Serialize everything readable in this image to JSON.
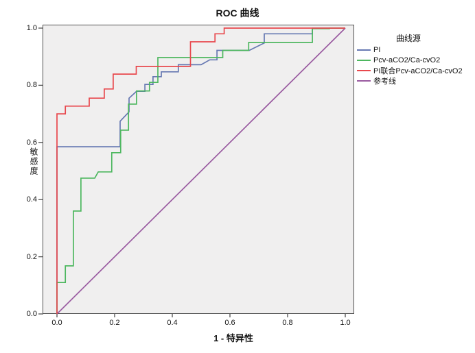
{
  "title": "ROC 曲线",
  "x_axis": {
    "label": "1 - 特异性",
    "ticks": [
      "0.0",
      "0.2",
      "0.4",
      "0.6",
      "0.8",
      "1.0"
    ]
  },
  "y_axis": {
    "label": "敏感度",
    "ticks": [
      "0.0",
      "0.2",
      "0.4",
      "0.6",
      "0.8",
      "1.0"
    ]
  },
  "legend": {
    "title": "曲线源",
    "items": [
      {
        "label": "PI",
        "color": "#6678B2"
      },
      {
        "label": "Pcv-aCO2/Ca-cvO2",
        "color": "#4DB75F"
      },
      {
        "label": "PI联合Pcv-aCO2/Ca-cvO2",
        "color": "#E8484D"
      },
      {
        "label": "参考线",
        "color": "#995AA0"
      }
    ]
  },
  "colors": {
    "plot_background": "#F0EFEF",
    "frame": "#4D4D4D",
    "pi_curve": "#6678B2",
    "pcv_curve": "#4DB75F",
    "combined_curve": "#E8484D",
    "reference_line": "#995AA0"
  },
  "chart_data": {
    "type": "line",
    "subtype": "roc-step-curves",
    "title": "ROC 曲线",
    "xlabel": "1 - 特异性",
    "ylabel": "敏感度",
    "xlim": [
      0,
      1
    ],
    "ylim": [
      0,
      1
    ],
    "grid": false,
    "legend_position": "right",
    "legend_title": "曲线源",
    "series": [
      {
        "name": "PI",
        "color": "#6678B2",
        "points": [
          [
            0,
            0
          ],
          [
            0,
            0.585
          ],
          [
            0.219,
            0.585
          ],
          [
            0.219,
            0.674
          ],
          [
            0.25,
            0.707
          ],
          [
            0.25,
            0.755
          ],
          [
            0.276,
            0.779
          ],
          [
            0.305,
            0.779
          ],
          [
            0.305,
            0.803
          ],
          [
            0.333,
            0.803
          ],
          [
            0.333,
            0.83
          ],
          [
            0.362,
            0.83
          ],
          [
            0.362,
            0.847
          ],
          [
            0.421,
            0.847
          ],
          [
            0.421,
            0.872
          ],
          [
            0.5,
            0.872
          ],
          [
            0.53,
            0.889
          ],
          [
            0.555,
            0.889
          ],
          [
            0.555,
            0.922
          ],
          [
            0.667,
            0.922
          ],
          [
            0.719,
            0.948
          ],
          [
            0.719,
            0.98
          ],
          [
            0.886,
            0.98
          ],
          [
            0.886,
            1
          ],
          [
            1,
            1
          ]
        ]
      },
      {
        "name": "Pcv-aCO2/Ca-cvO2",
        "color": "#4DB75F",
        "points": [
          [
            0,
            0
          ],
          [
            0,
            0.11
          ],
          [
            0.029,
            0.11
          ],
          [
            0.029,
            0.168
          ],
          [
            0.057,
            0.168
          ],
          [
            0.057,
            0.36
          ],
          [
            0.083,
            0.36
          ],
          [
            0.083,
            0.475
          ],
          [
            0.131,
            0.475
          ],
          [
            0.143,
            0.497
          ],
          [
            0.19,
            0.497
          ],
          [
            0.19,
            0.564
          ],
          [
            0.221,
            0.564
          ],
          [
            0.221,
            0.643
          ],
          [
            0.248,
            0.643
          ],
          [
            0.248,
            0.734
          ],
          [
            0.276,
            0.734
          ],
          [
            0.276,
            0.78
          ],
          [
            0.321,
            0.78
          ],
          [
            0.321,
            0.81
          ],
          [
            0.35,
            0.81
          ],
          [
            0.35,
            0.897
          ],
          [
            0.575,
            0.897
          ],
          [
            0.575,
            0.922
          ],
          [
            0.665,
            0.922
          ],
          [
            0.665,
            0.95
          ],
          [
            0.886,
            0.95
          ],
          [
            0.886,
            0.998
          ],
          [
            0.945,
            0.998
          ],
          [
            0.945,
            1
          ],
          [
            1,
            1
          ]
        ]
      },
      {
        "name": "PI联合Pcv-aCO2/Ca-cvO2",
        "color": "#E8484D",
        "points": [
          [
            0,
            0
          ],
          [
            0,
            0.7
          ],
          [
            0.029,
            0.7
          ],
          [
            0.029,
            0.727
          ],
          [
            0.112,
            0.727
          ],
          [
            0.112,
            0.755
          ],
          [
            0.164,
            0.755
          ],
          [
            0.164,
            0.787
          ],
          [
            0.195,
            0.787
          ],
          [
            0.195,
            0.839
          ],
          [
            0.275,
            0.839
          ],
          [
            0.275,
            0.866
          ],
          [
            0.463,
            0.866
          ],
          [
            0.463,
            0.952
          ],
          [
            0.548,
            0.952
          ],
          [
            0.548,
            0.98
          ],
          [
            0.58,
            0.98
          ],
          [
            0.58,
            1
          ],
          [
            1,
            1
          ]
        ]
      },
      {
        "name": "参考线",
        "color": "#995AA0",
        "points": [
          [
            0,
            0
          ],
          [
            1,
            1
          ]
        ]
      }
    ]
  }
}
